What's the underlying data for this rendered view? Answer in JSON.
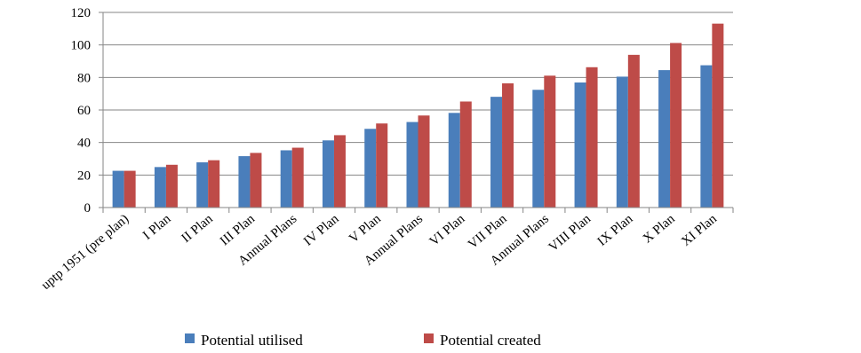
{
  "chart_data": {
    "type": "bar",
    "title": "",
    "xlabel": "",
    "ylabel": "",
    "categories": [
      "uptp 1951 (pre plan)",
      "I Plan",
      "II Plan",
      "III Plan",
      "Annual Plans",
      "IV Plan",
      "V Plan",
      "Annual Plans",
      "VI Plan",
      "VII Plan",
      "Annual Plans",
      "VIII Plan",
      "IX Plan",
      "X Plan",
      "XI Plan"
    ],
    "series": [
      {
        "name": "Potential utilised",
        "color": "#4a7ebb",
        "values": [
          22.6,
          24.9,
          27.8,
          31.6,
          35.2,
          41.3,
          48.4,
          52.6,
          58.2,
          68.1,
          72.4,
          76.9,
          80.5,
          84.5,
          87.5
        ]
      },
      {
        "name": "Potential created",
        "color": "#be4b48",
        "values": [
          22.6,
          26.3,
          29.1,
          33.6,
          36.8,
          44.5,
          51.7,
          56.6,
          65.2,
          76.4,
          81.1,
          86.3,
          93.9,
          101.2,
          113.1
        ]
      }
    ],
    "yticks": [
      0,
      20,
      40,
      60,
      80,
      100,
      120
    ],
    "ylim": [
      0,
      120
    ],
    "grid": true,
    "legend_position": "bottom"
  }
}
